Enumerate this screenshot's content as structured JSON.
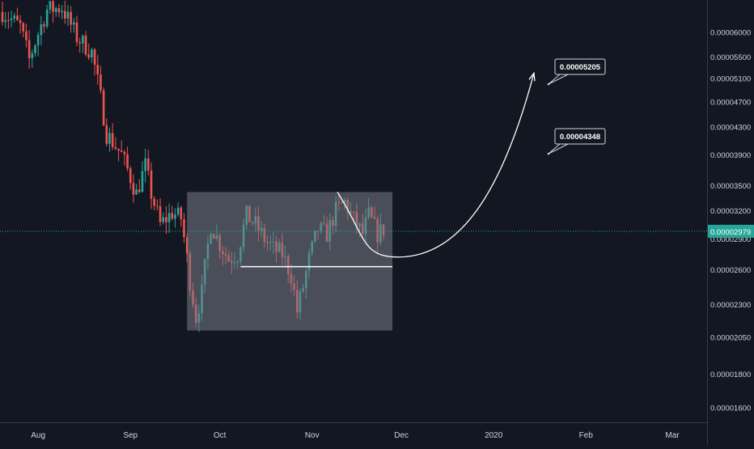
{
  "chart_data": {
    "type": "candlestick",
    "x_ticks": [
      "Aug",
      "Sep",
      "Oct",
      "Nov",
      "Dec",
      "2020",
      "Feb",
      "Mar"
    ],
    "y_ticks": [
      "0.00006000",
      "0.00005500",
      "0.00005100",
      "0.00004700",
      "0.00004300",
      "0.00003900",
      "0.00003500",
      "0.00003200",
      "0.00002900",
      "0.00002600",
      "0.00002300",
      "0.00002050",
      "0.00001800",
      "0.00001600"
    ],
    "y_scale": "log",
    "ylim": [
      1.52e-05,
      6.65e-05
    ],
    "current_price": "0.00002979",
    "callouts": [
      "0.00005205",
      "0.00004348"
    ],
    "annotations": {
      "range_box": {
        "x_start": "2019-09-20",
        "x_end": "2019-11-28",
        "y_low": 2.1e-05,
        "y_high": 3.42e-05
      },
      "support_line": {
        "x_start": "2019-10-08",
        "x_end": "2019-11-28",
        "y": 2.63e-05
      },
      "projection_curve": {
        "from": 3.42e-05,
        "low": 2.72e-05,
        "to": 5.2e-05
      }
    },
    "colors": {
      "up": "#26a69a",
      "down": "#ef5350",
      "background": "#131722",
      "price_line": "#26a69a",
      "box": "#787b86"
    },
    "grid": false
  }
}
